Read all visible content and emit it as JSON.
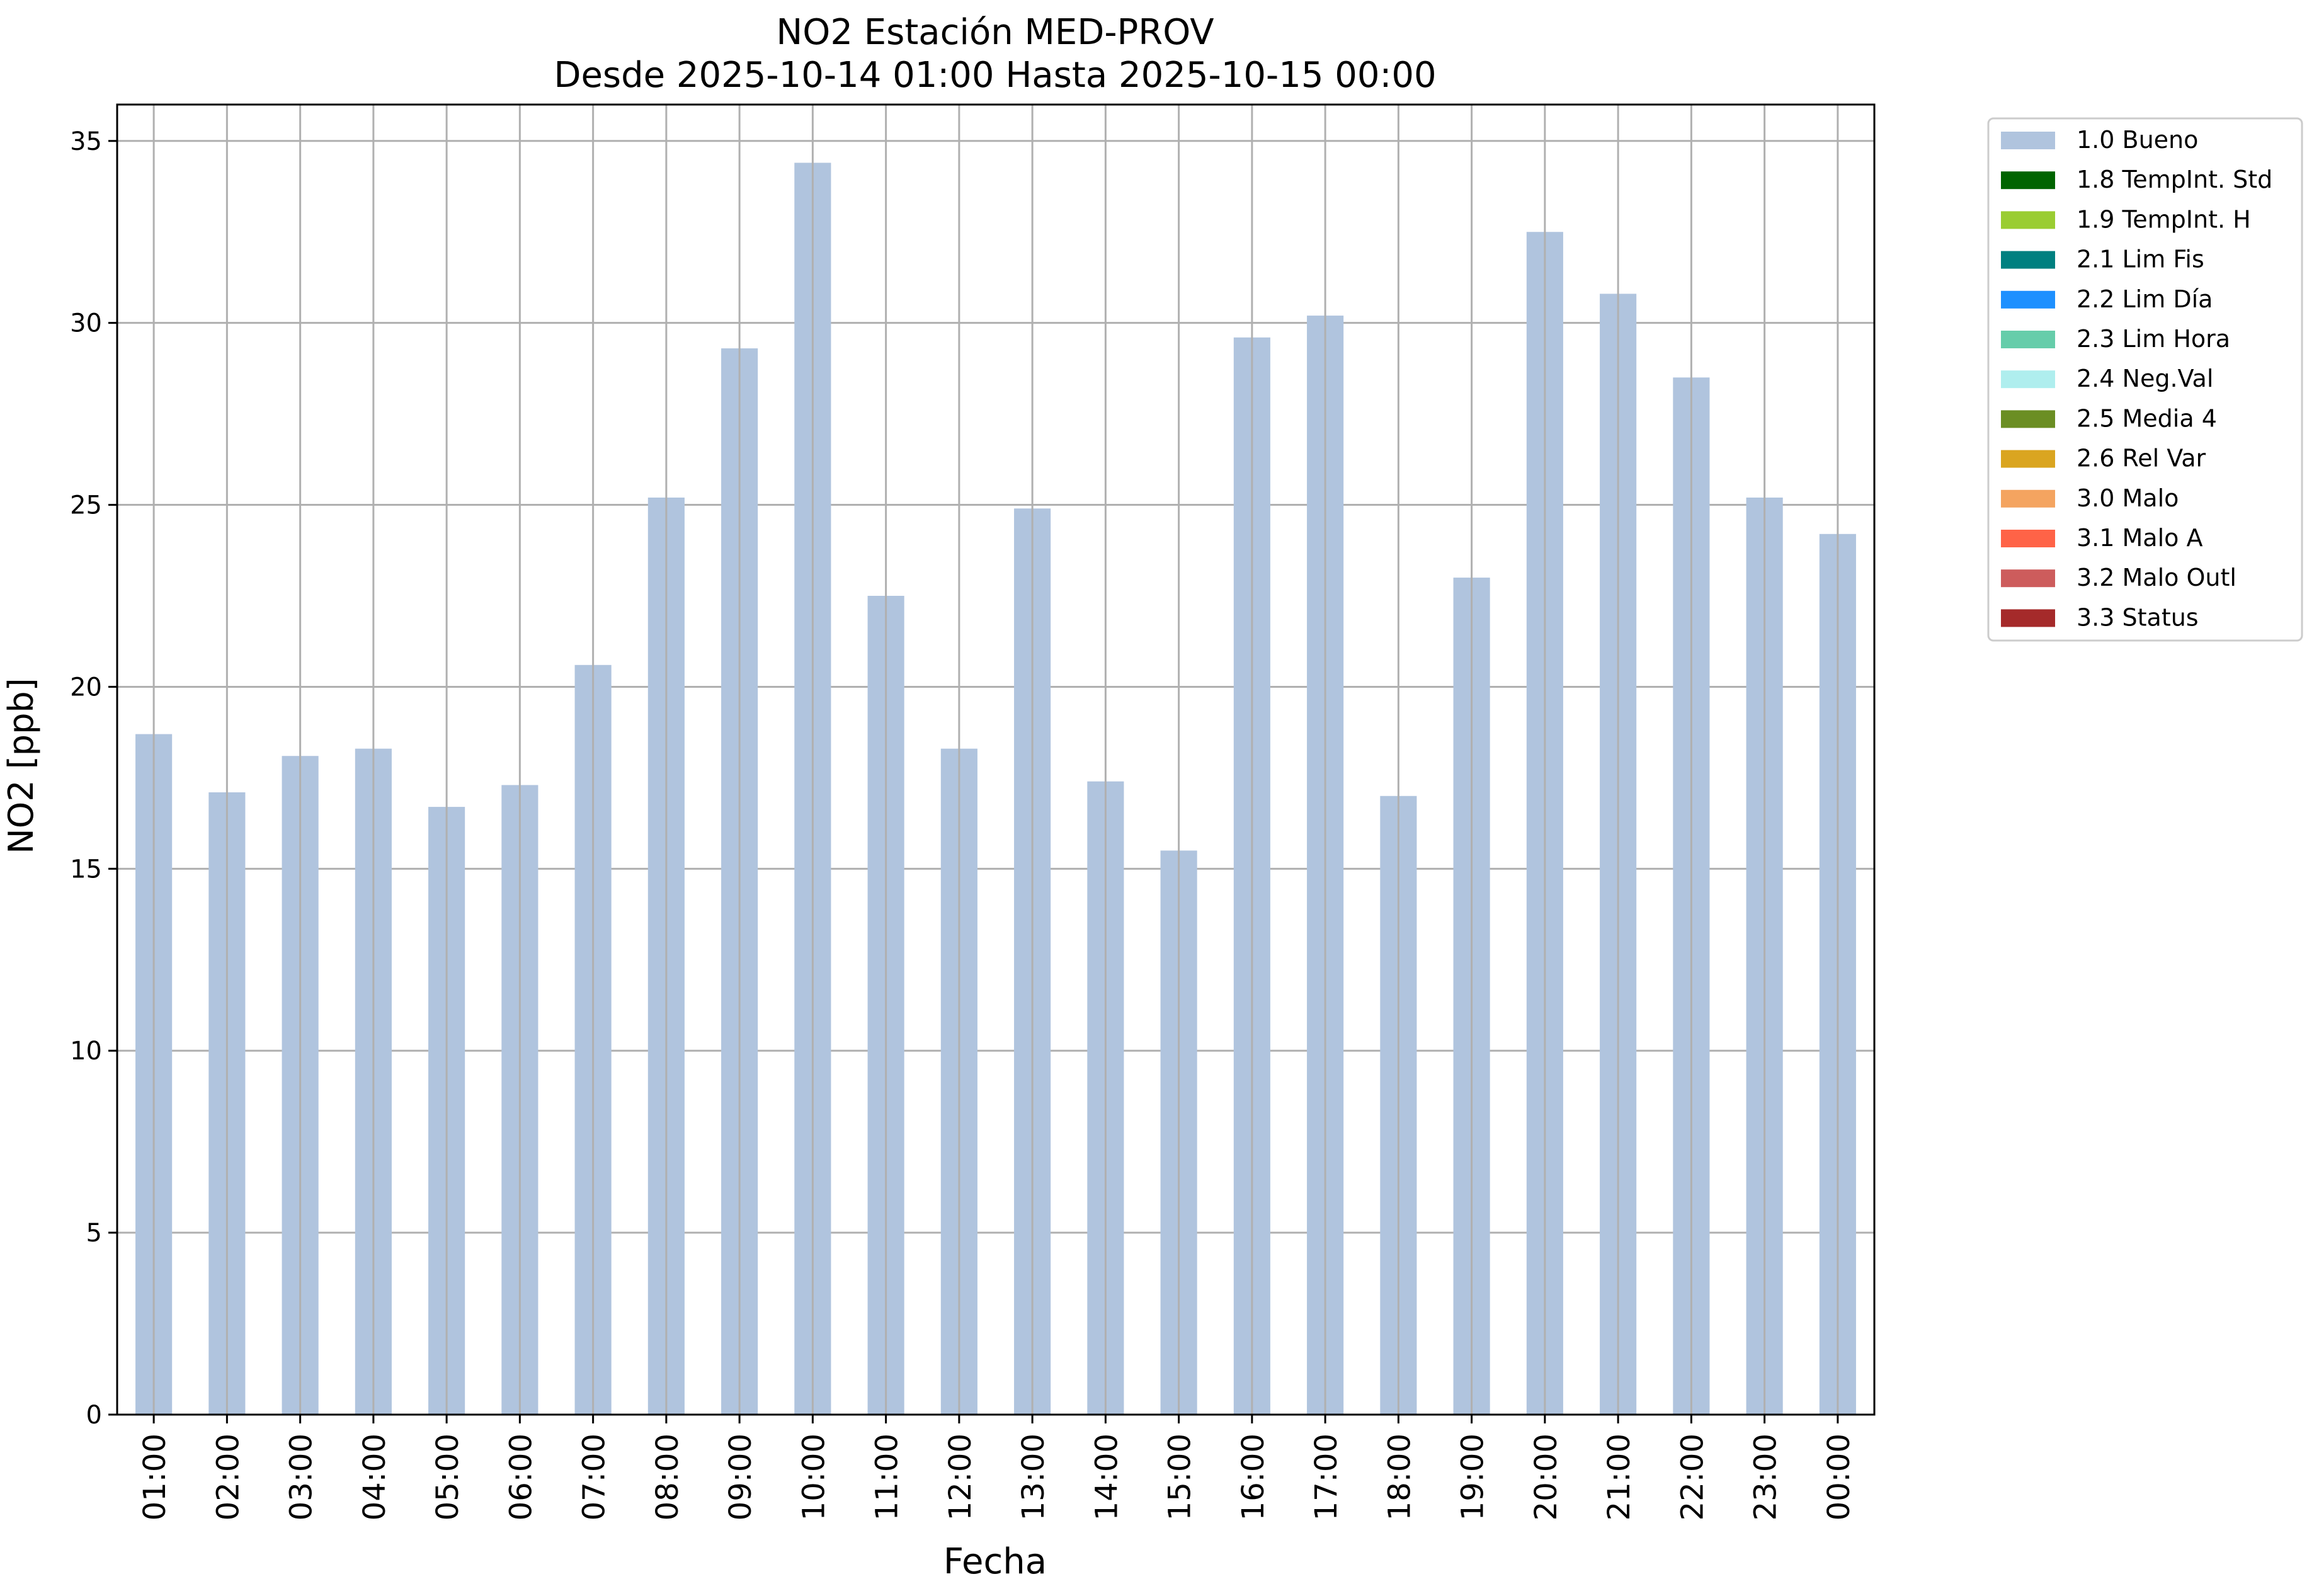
{
  "chart_data": {
    "type": "bar",
    "title": "NO2 Estación MED-PROV",
    "subtitle": "Desde 2025-10-14 01:00 Hasta 2025-10-15 00:00",
    "xlabel": "Fecha",
    "ylabel": "NO2 [ppb]",
    "ylim": [
      0,
      36
    ],
    "yticks": [
      0,
      5,
      10,
      15,
      20,
      25,
      30,
      35
    ],
    "grid": true,
    "legend_position": "outside-top-right",
    "categories": [
      "01:00",
      "02:00",
      "03:00",
      "04:00",
      "05:00",
      "06:00",
      "07:00",
      "08:00",
      "09:00",
      "10:00",
      "11:00",
      "12:00",
      "13:00",
      "14:00",
      "15:00",
      "16:00",
      "17:00",
      "18:00",
      "19:00",
      "20:00",
      "21:00",
      "22:00",
      "23:00",
      "00:00"
    ],
    "series": [
      {
        "name": "1.0 Bueno",
        "color": "#b0c4de",
        "values": [
          18.7,
          17.1,
          18.1,
          18.3,
          16.7,
          17.3,
          20.6,
          25.2,
          29.3,
          34.4,
          22.5,
          18.3,
          24.9,
          17.4,
          15.5,
          29.6,
          30.2,
          17.0,
          23.0,
          32.5,
          30.8,
          28.5,
          25.2,
          24.2
        ]
      }
    ],
    "legend": [
      {
        "label": "1.0 Bueno",
        "color": "#b0c4de"
      },
      {
        "label": "1.8 TempInt. Std",
        "color": "#006400"
      },
      {
        "label": "1.9 TempInt. H",
        "color": "#9acd32"
      },
      {
        "label": "2.1 Lim Fis",
        "color": "#008080"
      },
      {
        "label": "2.2 Lim Día",
        "color": "#1e90ff"
      },
      {
        "label": "2.3 Lim Hora",
        "color": "#66cdaa"
      },
      {
        "label": "2.4 Neg.Val",
        "color": "#afeeee"
      },
      {
        "label": "2.5 Media 4",
        "color": "#6b8e23"
      },
      {
        "label": "2.6 Rel Var",
        "color": "#daa520"
      },
      {
        "label": "3.0 Malo",
        "color": "#f4a460"
      },
      {
        "label": "3.1 Malo A",
        "color": "#ff6347"
      },
      {
        "label": "3.2 Malo Outl",
        "color": "#cd5c5c"
      },
      {
        "label": "3.3 Status",
        "color": "#a52a2a"
      }
    ]
  }
}
